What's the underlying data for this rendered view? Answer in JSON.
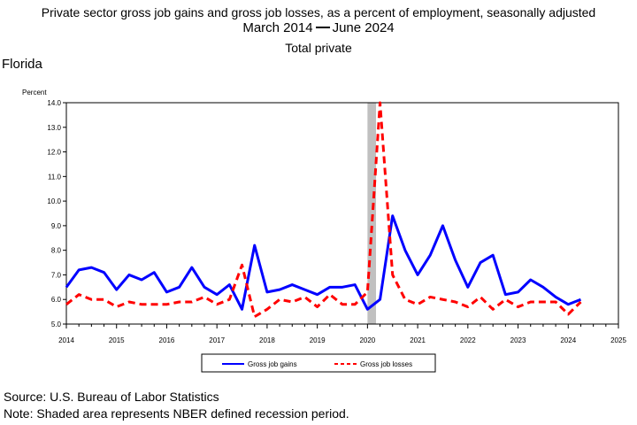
{
  "titles": {
    "line1": "Private sector gross job gains and gross job losses, as a percent of employment, seasonally adjusted",
    "range_start": "March 2014",
    "range_end": "June 2024",
    "line3": "Total private"
  },
  "region": "Florida",
  "footer": {
    "source": "Source: U.S. Bureau of Labor Statistics",
    "note": "Note: Shaded area represents NBER defined recession period."
  },
  "chart_data": {
    "type": "line",
    "ylabel": "Percent",
    "ylim": [
      5.0,
      14.0
    ],
    "yticks": [
      "5.0",
      "6.0",
      "7.0",
      "8.0",
      "9.0",
      "10.0",
      "11.0",
      "12.0",
      "13.0",
      "14.0"
    ],
    "xlim": [
      2014,
      2025
    ],
    "xticks": [
      "2014",
      "2015",
      "2016",
      "2017",
      "2018",
      "2019",
      "2020",
      "2021",
      "2022",
      "2023",
      "2024",
      "2025"
    ],
    "recession": [
      2020.0,
      2020.17
    ],
    "legend_position": "bottom-center",
    "colors": {
      "gains": "#0000ff",
      "losses": "#ff0000",
      "recession": "#c0c0c0"
    },
    "series": [
      {
        "name": "Gross job gains",
        "style": "solid",
        "x": [
          2014.0,
          2014.25,
          2014.5,
          2014.75,
          2015.0,
          2015.25,
          2015.5,
          2015.75,
          2016.0,
          2016.25,
          2016.5,
          2016.75,
          2017.0,
          2017.25,
          2017.5,
          2017.75,
          2018.0,
          2018.25,
          2018.5,
          2018.75,
          2019.0,
          2019.25,
          2019.5,
          2019.75,
          2020.0,
          2020.25,
          2020.5,
          2020.75,
          2021.0,
          2021.25,
          2021.5,
          2021.75,
          2022.0,
          2022.25,
          2022.5,
          2022.75,
          2023.0,
          2023.25,
          2023.5,
          2023.75,
          2024.0,
          2024.25
        ],
        "values": [
          6.5,
          7.2,
          7.3,
          7.1,
          6.4,
          7.0,
          6.8,
          7.1,
          6.3,
          6.5,
          7.3,
          6.5,
          6.2,
          6.6,
          5.6,
          8.2,
          6.3,
          6.4,
          6.6,
          6.4,
          6.2,
          6.5,
          6.5,
          6.6,
          5.6,
          6.0,
          9.4,
          8.0,
          7.0,
          7.8,
          9.0,
          7.6,
          6.5,
          7.5,
          7.8,
          6.2,
          6.3,
          6.8,
          6.5,
          6.1,
          5.8,
          6.0
        ]
      },
      {
        "name": "Gross job losses",
        "style": "dashed",
        "x": [
          2014.0,
          2014.25,
          2014.5,
          2014.75,
          2015.0,
          2015.25,
          2015.5,
          2015.75,
          2016.0,
          2016.25,
          2016.5,
          2016.75,
          2017.0,
          2017.25,
          2017.5,
          2017.75,
          2018.0,
          2018.25,
          2018.5,
          2018.75,
          2019.0,
          2019.25,
          2019.5,
          2019.75,
          2020.0,
          2020.25,
          2020.5,
          2020.75,
          2021.0,
          2021.25,
          2021.5,
          2021.75,
          2022.0,
          2022.25,
          2022.5,
          2022.75,
          2023.0,
          2023.25,
          2023.5,
          2023.75,
          2024.0,
          2024.25
        ],
        "values": [
          5.8,
          6.2,
          6.0,
          6.0,
          5.7,
          5.9,
          5.8,
          5.8,
          5.8,
          5.9,
          5.9,
          6.1,
          5.8,
          6.0,
          7.4,
          5.3,
          5.6,
          6.0,
          5.9,
          6.1,
          5.7,
          6.2,
          5.8,
          5.8,
          6.3,
          14.0,
          7.0,
          6.0,
          5.8,
          6.1,
          6.0,
          5.9,
          5.7,
          6.1,
          5.6,
          6.0,
          5.7,
          5.9,
          5.9,
          5.9,
          5.4,
          5.9
        ]
      }
    ]
  }
}
